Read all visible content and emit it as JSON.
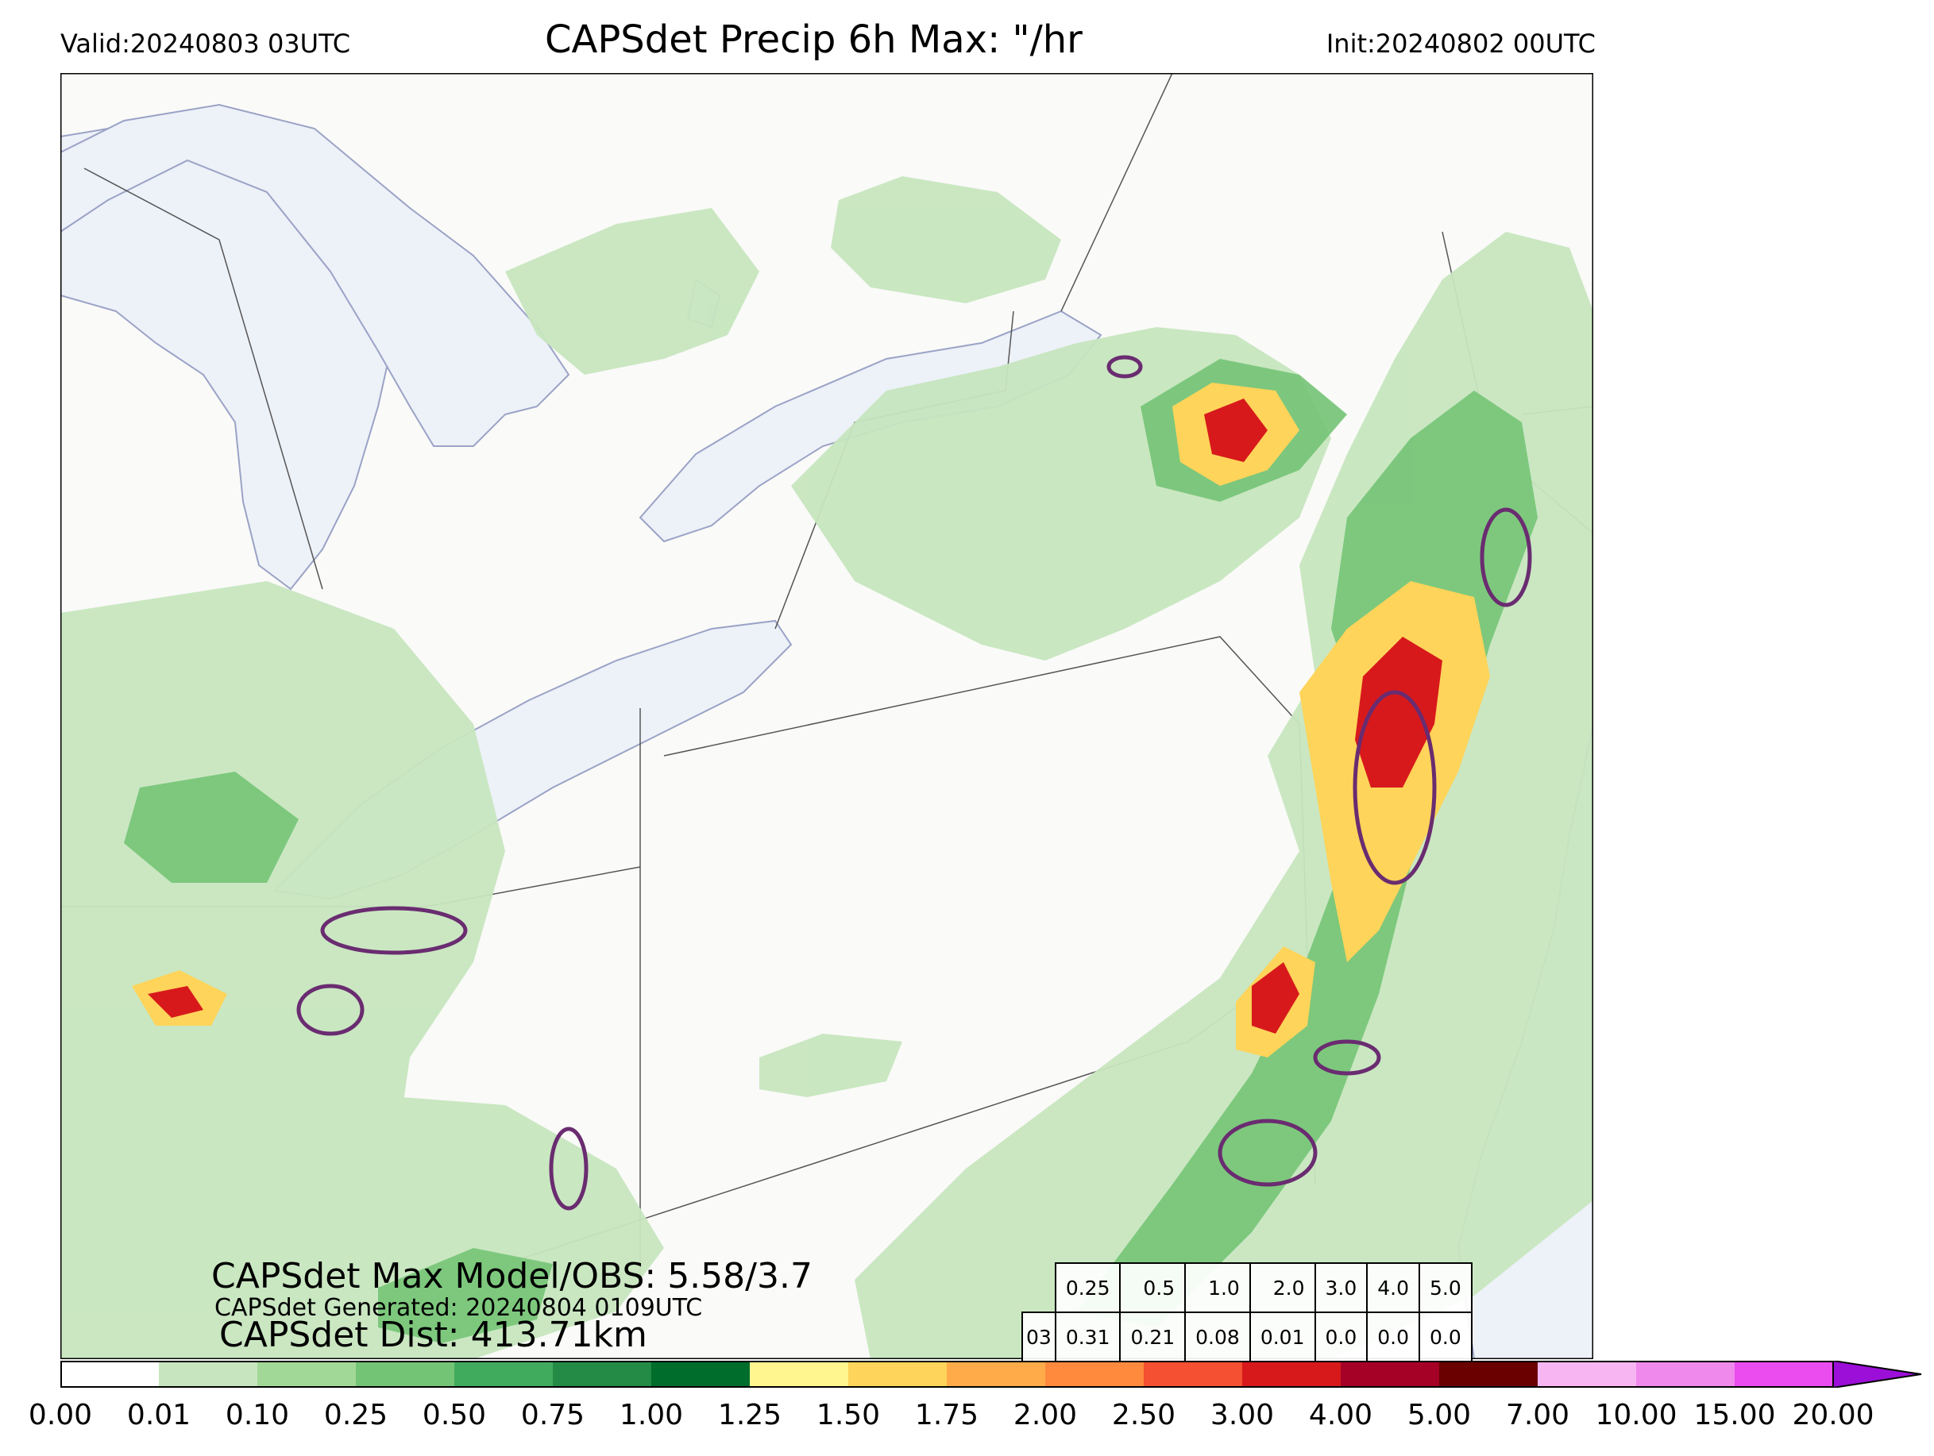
{
  "header": {
    "valid": "Valid:20240803 03UTC",
    "title": "CAPSdet Precip 6h Max: \"/hr",
    "init": "Init:20240802 00UTC"
  },
  "overlay": {
    "max_model_obs": "CAPSdet Max Model/OBS: 5.58/3.7",
    "generated": "CAPSdet Generated: 20240804 0109UTC",
    "distance": "CAPSdet Dist: 413.71km"
  },
  "stats_table": {
    "thresholds": [
      "0.25",
      "0.5",
      "1.0",
      "2.0",
      "3.0",
      "4.0",
      "5.0"
    ],
    "row_label": "03",
    "values": [
      "0.31",
      "0.21",
      "0.08",
      "0.01",
      "0.0",
      "0.0",
      "0.0"
    ]
  },
  "colorbar": {
    "ticks": [
      "0.00",
      "0.01",
      "0.10",
      "0.25",
      "0.50",
      "0.75",
      "1.00",
      "1.25",
      "1.50",
      "1.75",
      "2.00",
      "2.50",
      "3.00",
      "4.00",
      "5.00",
      "7.00",
      "10.00",
      "15.00",
      "20.00"
    ],
    "colors": [
      "#ffffff",
      "#c7e6bf",
      "#a2d897",
      "#74c476",
      "#41ab5d",
      "#238b45",
      "#006d2c",
      "#fff68f",
      "#ffd45a",
      "#ffab4a",
      "#ff8a3d",
      "#f45031",
      "#d7191c",
      "#a50026",
      "#6b0000",
      "#f7b6f2",
      "#f089ec",
      "#ea4cf0",
      "#cc1ae0",
      "#9b0fd8"
    ],
    "extend": "max"
  },
  "map": {
    "land_color": "#fafaf8",
    "water_color": "#edf1f8",
    "obs_contour_color": "#6a2c70",
    "boundary_color": "#555555"
  }
}
